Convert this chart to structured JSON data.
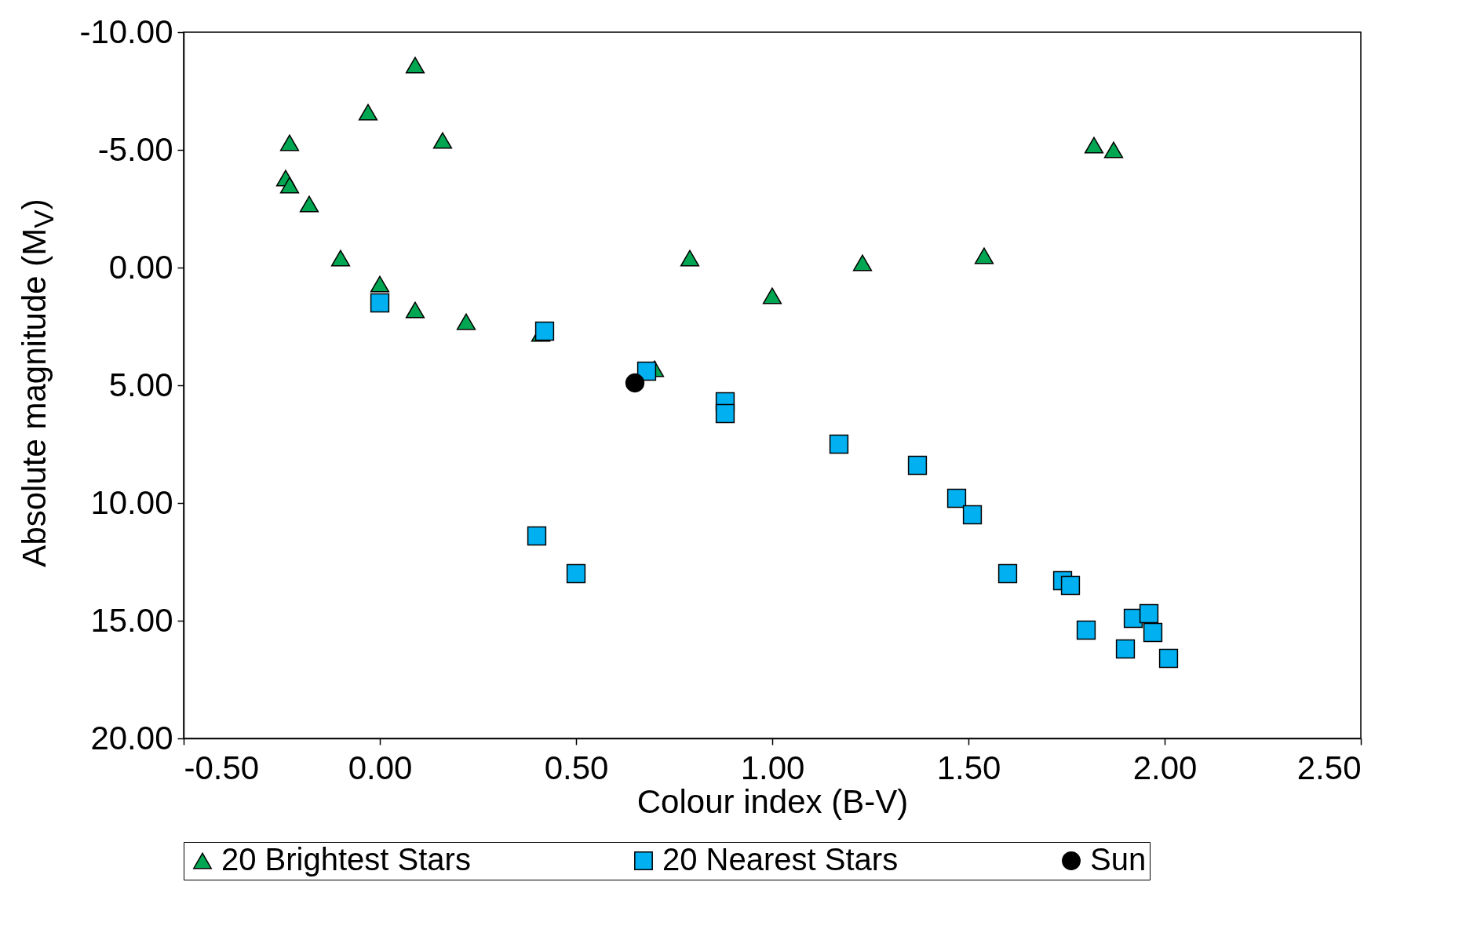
{
  "chart_data": {
    "type": "scatter",
    "xlabel": "Colour index (B-V)",
    "ylabel": "Absolute magnitude (M$_{V}$)",
    "xlim": [
      -0.5,
      2.5
    ],
    "xticks": [
      {
        "value": -0.5,
        "label": "-0.50"
      },
      {
        "value": 0,
        "label": "0.00"
      },
      {
        "value": 0.5,
        "label": "0.50"
      },
      {
        "value": 1,
        "label": "1.00"
      },
      {
        "value": 1.5,
        "label": "1.50"
      },
      {
        "value": 2,
        "label": "2.00"
      },
      {
        "value": 2.5,
        "label": "2.50"
      }
    ],
    "ylim": [
      20,
      -10
    ],
    "yticks": [
      {
        "value": -10,
        "label": "-10.00"
      },
      {
        "value": -5,
        "label": "-5.00"
      },
      {
        "value": 0,
        "label": "0.00"
      },
      {
        "value": 5,
        "label": "5.00"
      },
      {
        "value": 10,
        "label": "10.00"
      },
      {
        "value": 15,
        "label": "15.00"
      },
      {
        "value": 20,
        "label": "20.00"
      }
    ],
    "grid": false,
    "legend": "bottom",
    "series": [
      {
        "name": "20 Brightest Stars",
        "color": "#00a651",
        "marker": "triangle",
        "x": [
          0.09,
          -0.03,
          -0.23,
          0.16,
          -0.24,
          -0.23,
          -0.18,
          -0.1,
          0.0,
          0.09,
          0.22,
          0.41,
          0.7,
          0.79,
          1.0,
          1.23,
          1.54,
          1.82,
          1.87
        ],
        "values": [
          -8.6,
          -6.6,
          -5.3,
          -5.4,
          -3.8,
          -3.5,
          -2.7,
          -0.4,
          0.7,
          1.8,
          2.3,
          2.8,
          4.3,
          -0.4,
          1.2,
          -0.2,
          -0.5,
          -5.2,
          -5.0
        ]
      },
      {
        "name": "20 Nearest Stars",
        "color": "#00b0f0",
        "marker": "square",
        "x": [
          0.0,
          0.42,
          0.68,
          0.88,
          0.88,
          1.17,
          1.37,
          1.47,
          1.51,
          0.4,
          0.5,
          1.6,
          1.74,
          1.76,
          1.92,
          1.96,
          1.8,
          1.97,
          1.9,
          2.01
        ],
        "values": [
          1.5,
          2.7,
          4.4,
          5.7,
          6.2,
          7.5,
          8.4,
          9.8,
          10.5,
          11.4,
          13.0,
          13.0,
          13.3,
          13.5,
          14.9,
          14.7,
          15.4,
          15.5,
          16.2,
          16.6
        ]
      },
      {
        "name": "Sun",
        "color": "#000000",
        "marker": "circle",
        "x": [
          0.65
        ],
        "values": [
          4.9
        ]
      }
    ]
  }
}
